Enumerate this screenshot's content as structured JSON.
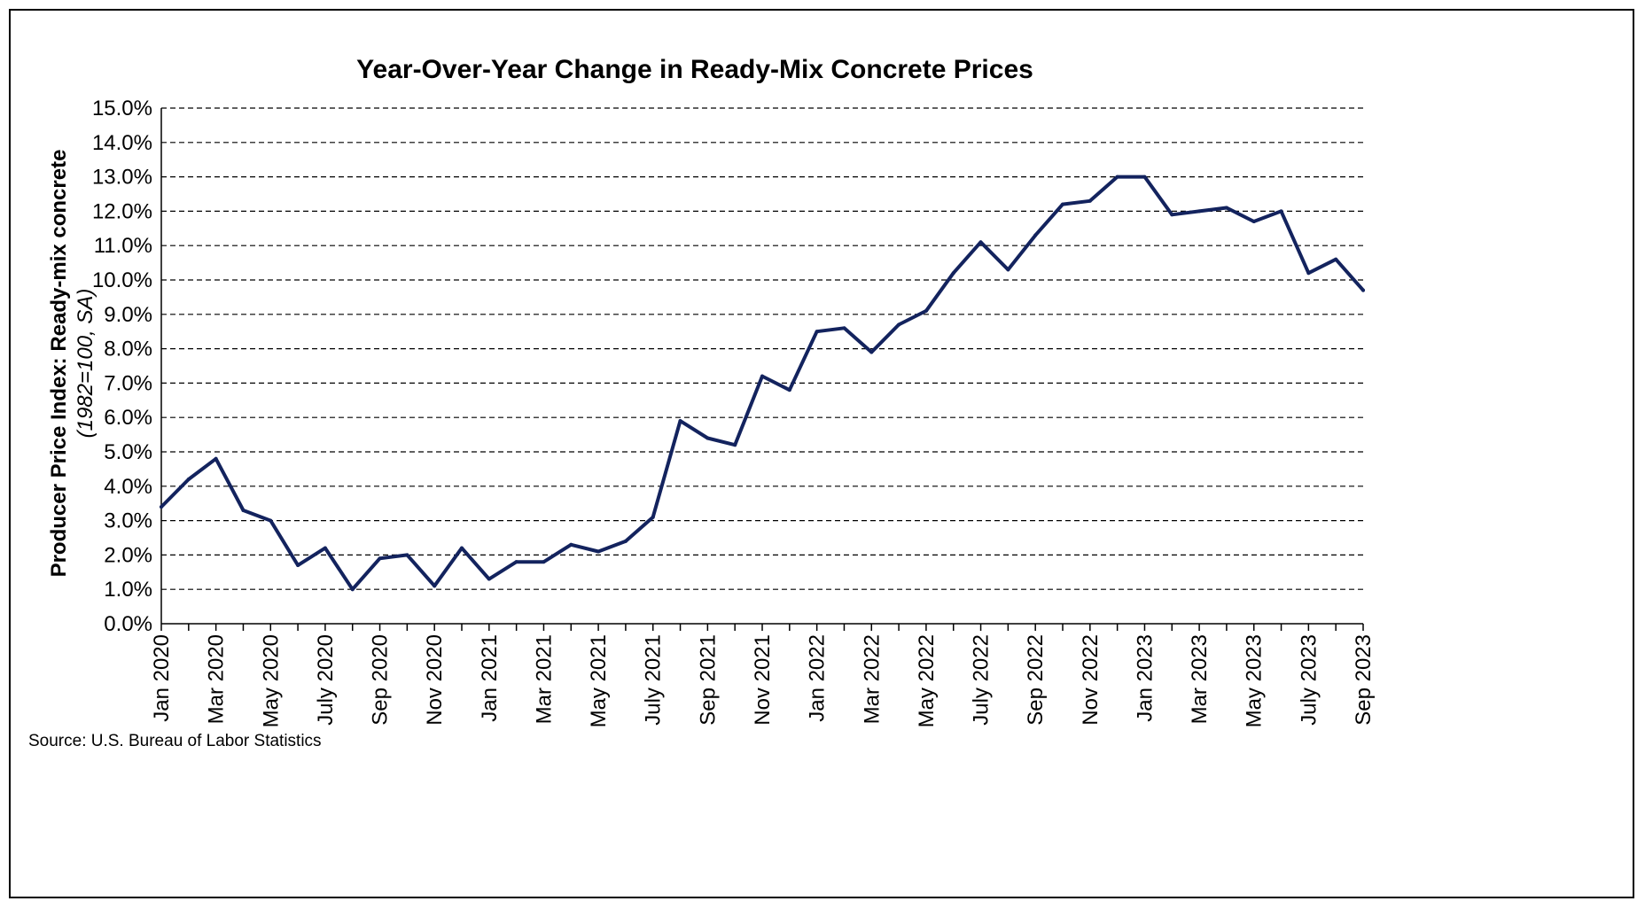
{
  "chart_data": {
    "type": "line",
    "title": "Year-Over-Year Change in Ready-Mix Concrete Prices",
    "ylabel": "Producer Price Index: Ready-mix concrete",
    "ylabel_sub": "(1982=100, SA)",
    "xlabel": "",
    "source": "Source: U.S. Bureau of Labor Statistics",
    "ylim": [
      0,
      15
    ],
    "y_ticks": [
      "0.0%",
      "1.0%",
      "2.0%",
      "3.0%",
      "4.0%",
      "5.0%",
      "6.0%",
      "7.0%",
      "8.0%",
      "9.0%",
      "10.0%",
      "11.0%",
      "12.0%",
      "13.0%",
      "14.0%",
      "15.0%"
    ],
    "x_tick_labels": [
      "Jan 2020",
      "Mar 2020",
      "May 2020",
      "July 2020",
      "Sep 2020",
      "Nov 2020",
      "Jan 2021",
      "Mar 2021",
      "May 2021",
      "July 2021",
      "Sep 2021",
      "Nov 2021",
      "Jan 2022",
      "Mar 2022",
      "May 2022",
      "July 2022",
      "Sep 2022",
      "Nov 2022",
      "Jan 2023",
      "Mar 2023",
      "May 2023",
      "July 2023",
      "Sep 2023"
    ],
    "grid": true,
    "grid_style": "dashed horizontal",
    "legend": "none",
    "color": "#13235e",
    "x": [
      "2020-01",
      "2020-02",
      "2020-03",
      "2020-04",
      "2020-05",
      "2020-06",
      "2020-07",
      "2020-08",
      "2020-09",
      "2020-10",
      "2020-11",
      "2020-12",
      "2021-01",
      "2021-02",
      "2021-03",
      "2021-04",
      "2021-05",
      "2021-06",
      "2021-07",
      "2021-08",
      "2021-09",
      "2021-10",
      "2021-11",
      "2021-12",
      "2022-01",
      "2022-02",
      "2022-03",
      "2022-04",
      "2022-05",
      "2022-06",
      "2022-07",
      "2022-08",
      "2022-09",
      "2022-10",
      "2022-11",
      "2022-12",
      "2023-01",
      "2023-02",
      "2023-03",
      "2023-04",
      "2023-05",
      "2023-06",
      "2023-07",
      "2023-08",
      "2023-09"
    ],
    "values": [
      3.4,
      4.2,
      4.8,
      3.3,
      3.0,
      1.7,
      2.2,
      1.0,
      1.9,
      2.0,
      1.1,
      2.2,
      1.3,
      1.8,
      1.8,
      2.3,
      2.1,
      2.4,
      3.1,
      5.9,
      5.4,
      5.2,
      7.2,
      6.8,
      8.5,
      8.6,
      7.9,
      8.7,
      9.1,
      10.2,
      11.1,
      10.3,
      11.3,
      12.2,
      12.3,
      13.0,
      13.0,
      11.9,
      12.0,
      12.1,
      11.7,
      12.0,
      10.2,
      10.6,
      9.7
    ]
  }
}
